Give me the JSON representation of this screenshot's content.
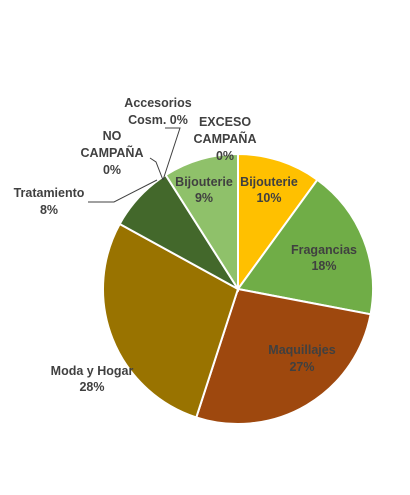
{
  "chart_data": {
    "type": "pie",
    "title": "",
    "start_angle_deg": 0,
    "direction": "clockwise",
    "legend": "none",
    "slices": [
      {
        "name": "Bijouterie",
        "value": 10,
        "label_pct": "10%",
        "color": "#FFC000"
      },
      {
        "name": "Fragancias",
        "value": 18,
        "label_pct": "18%",
        "color": "#70AD47"
      },
      {
        "name": "Maquillajes",
        "value": 27,
        "label_pct": "27%",
        "color": "#9E480E"
      },
      {
        "name": "Moda y Hogar",
        "value": 28,
        "label_pct": "28%",
        "color": "#997300"
      },
      {
        "name": "Tratamiento",
        "value": 8,
        "label_pct": "8%",
        "color": "#43682B"
      },
      {
        "name": "NO CAMPAÑA",
        "value": 0,
        "label_pct": "0%",
        "color": "#264478"
      },
      {
        "name": "Accesorios Cosm.",
        "value": 0,
        "label_pct": "0%",
        "color": "#636363"
      },
      {
        "name": "EXCESO CAMPAÑA",
        "value": 0,
        "label_pct": "0%",
        "color": "#255E91"
      },
      {
        "name": "Bijouterie",
        "value": 9,
        "label_pct": "9%",
        "color": "#8FC16A"
      }
    ]
  }
}
